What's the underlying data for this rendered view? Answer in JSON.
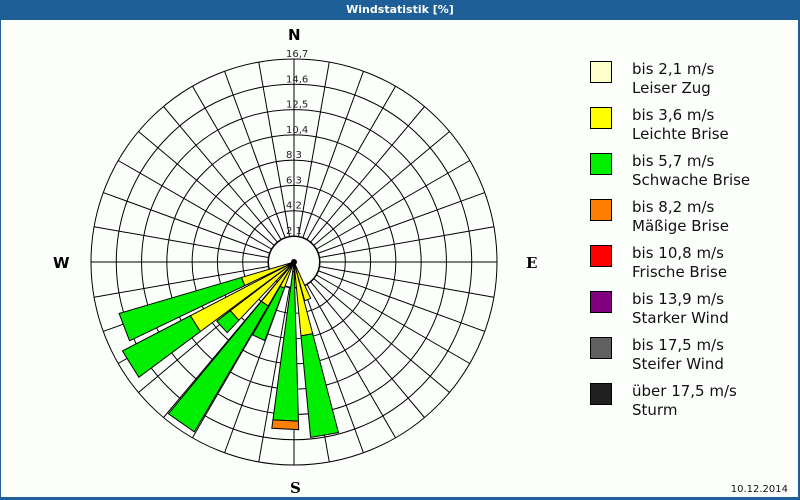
{
  "window": {
    "title": "Windstatistik [%]"
  },
  "footer": {
    "date": "10.12.2014"
  },
  "compass": {
    "n": "N",
    "e": "E",
    "s": "S",
    "w": "W"
  },
  "legend": [
    {
      "range": "bis 2,1 m/s",
      "name": "Leiser Zug",
      "color": "#ffffcc"
    },
    {
      "range": "bis 3,6 m/s",
      "name": "Leichte Brise",
      "color": "#ffff00"
    },
    {
      "range": "bis 5,7 m/s",
      "name": "Schwache Brise",
      "color": "#00ee00"
    },
    {
      "range": "bis 8,2 m/s",
      "name": "Mäßige Brise",
      "color": "#ff8000"
    },
    {
      "range": "bis 10,8 m/s",
      "name": "Frische Brise",
      "color": "#ff0000"
    },
    {
      "range": "bis 13,9 m/s",
      "name": "Starker Wind",
      "color": "#800080"
    },
    {
      "range": "bis 17,5 m/s",
      "name": "Steifer Wind",
      "color": "#606060"
    },
    {
      "range": "über 17,5 m/s",
      "name": "Sturm",
      "color": "#202020"
    }
  ],
  "chart_data": {
    "type": "wind-rose",
    "title": "Windstatistik [%]",
    "radial_ticks": [
      "2,1",
      "4,2",
      "6,3",
      "8,3",
      "10,4",
      "12,5",
      "14,6",
      "16,7"
    ],
    "radial_max": 16.7,
    "sector_width_deg": 10,
    "directions_labels": [
      "N",
      "E",
      "S",
      "W"
    ],
    "series_names": [
      "bis 2,1 m/s",
      "bis 3,6 m/s",
      "bis 5,7 m/s",
      "bis 8,2 m/s",
      "bis 10,8 m/s",
      "bis 13,9 m/s",
      "bis 17,5 m/s",
      "über 17,5 m/s"
    ],
    "petals": [
      {
        "bearing": 160,
        "cumulative": {
          "bis 3,6 m/s": 3.3
        }
      },
      {
        "bearing": 170,
        "cumulative": {
          "bis 3,6 m/s": 6.1,
          "bis 5,7 m/s": 14.5
        }
      },
      {
        "bearing": 183,
        "cumulative": {
          "bis 3,6 m/s": 0.8,
          "bis 5,7 m/s": 13.1,
          "bis 8,2 m/s": 13.8
        }
      },
      {
        "bearing": 205,
        "cumulative": {
          "bis 3,6 m/s": 2.3,
          "bis 5,7 m/s": 6.9
        }
      },
      {
        "bearing": 215,
        "cumulative": {
          "bis 3,6 m/s": 4.2,
          "bis 5,7 m/s": 16.2
        }
      },
      {
        "bearing": 228,
        "cumulative": {
          "bis 3,6 m/s": 6.6,
          "bis 5,7 m/s": 8.0
        }
      },
      {
        "bearing": 238,
        "cumulative": {
          "bis 3,6 m/s": 9.6,
          "bis 5,7 m/s": 15.9
        }
      },
      {
        "bearing": 249,
        "cumulative": {
          "bis 3,6 m/s": 4.5,
          "bis 5,7 m/s": 15.0
        }
      }
    ]
  }
}
